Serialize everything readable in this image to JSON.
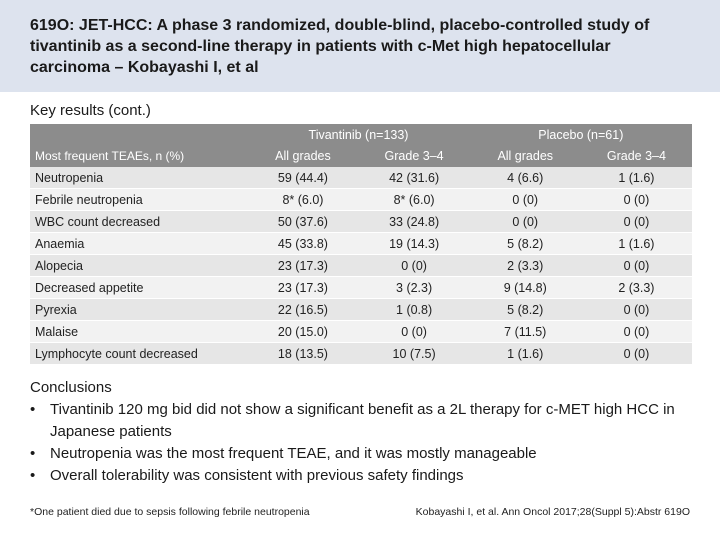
{
  "header": {
    "title": "619O: JET-HCC: A phase 3 randomized, double-blind, placebo-controlled study of tivantinib as a second-line therapy in patients with c-Met high hepatocellular carcinoma – Kobayashi I, et al",
    "background_color": "#dde3ee"
  },
  "section_heading": "Key results (cont.)",
  "table": {
    "header_color": "#8c8c8c",
    "groups": [
      "Tivantinib (n=133)",
      "Placebo (n=61)"
    ],
    "columns": [
      "Most frequent TEAEs, n (%)",
      "All grades",
      "Grade 3–4",
      "All grades",
      "Grade 3–4"
    ],
    "rows": [
      {
        "label": "Neutropenia",
        "tiv_all": "59 (44.4)",
        "tiv_g34": "42 (31.6)",
        "pbo_all": "4 (6.6)",
        "pbo_g34": "1 (1.6)"
      },
      {
        "label": "Febrile neutropenia",
        "tiv_all": "8* (6.0)",
        "tiv_g34": "8* (6.0)",
        "pbo_all": "0 (0)",
        "pbo_g34": "0 (0)"
      },
      {
        "label": "WBC count decreased",
        "tiv_all": "50 (37.6)",
        "tiv_g34": "33 (24.8)",
        "pbo_all": "0 (0)",
        "pbo_g34": "0 (0)"
      },
      {
        "label": "Anaemia",
        "tiv_all": "45 (33.8)",
        "tiv_g34": "19 (14.3)",
        "pbo_all": "5 (8.2)",
        "pbo_g34": "1 (1.6)"
      },
      {
        "label": "Alopecia",
        "tiv_all": "23 (17.3)",
        "tiv_g34": "0 (0)",
        "pbo_all": "2 (3.3)",
        "pbo_g34": "0 (0)"
      },
      {
        "label": "Decreased appetite",
        "tiv_all": "23 (17.3)",
        "tiv_g34": "3 (2.3)",
        "pbo_all": "9 (14.8)",
        "pbo_g34": "2 (3.3)"
      },
      {
        "label": "Pyrexia",
        "tiv_all": "22 (16.5)",
        "tiv_g34": "1 (0.8)",
        "pbo_all": "5 (8.2)",
        "pbo_g34": "0 (0)"
      },
      {
        "label": "Malaise",
        "tiv_all": "20 (15.0)",
        "tiv_g34": "0 (0)",
        "pbo_all": "7 (11.5)",
        "pbo_g34": "0 (0)"
      },
      {
        "label": "Lymphocyte count decreased",
        "tiv_all": "18 (13.5)",
        "tiv_g34": "10 (7.5)",
        "pbo_all": "1 (1.6)",
        "pbo_g34": "0 (0)"
      }
    ]
  },
  "conclusions": {
    "heading": "Conclusions",
    "bullet_symbol": "•",
    "items": [
      "Tivantinib 120 mg bid did not show a significant benefit as a 2L therapy for c-MET high HCC in Japanese patients",
      "Neutropenia was the most frequent TEAE, and it was mostly manageable",
      "Overall tolerability was consistent with previous safety findings"
    ]
  },
  "footnote": "*One patient died due to sepsis following febrile neutropenia",
  "citation": "Kobayashi I, et al. Ann Oncol 2017;28(Suppl 5):Abstr 619O"
}
